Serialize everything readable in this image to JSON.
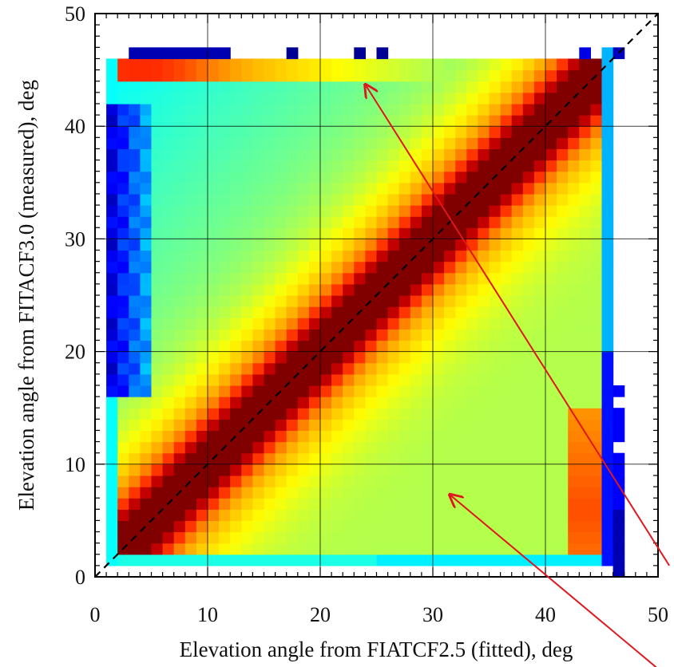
{
  "chart_data": {
    "type": "heatmap",
    "title": "",
    "xlabel": "Elevation angle from FIATCF2.5 (fitted), deg",
    "ylabel": "Elevation angle from FITACF3.0 (measured), deg",
    "xlim": [
      0,
      50
    ],
    "ylim": [
      0,
      50
    ],
    "x_ticks": [
      0,
      10,
      20,
      30,
      40,
      50
    ],
    "y_ticks": [
      0,
      10,
      20,
      30,
      40,
      50
    ],
    "grid": true,
    "bin_size_deg": 1,
    "populated_range_deg": [
      1,
      46
    ],
    "colormap": "jet (blue = low, red = high density)",
    "reference_line": {
      "type": "dashed",
      "equation": "y = x",
      "color": "#000000"
    },
    "features": [
      {
        "x": [
          1,
          46
        ],
        "y": [
          1,
          46
        ],
        "level": "high"
      },
      {
        "x": [
          2,
          12
        ],
        "y": [
          44,
          46
        ],
        "level": "high"
      },
      {
        "x": [
          42,
          45
        ],
        "y": [
          1,
          14
        ],
        "level": "high"
      },
      {
        "x": [
          1,
          5
        ],
        "y": [
          18,
          41
        ],
        "level": "low"
      },
      {
        "x": [
          45,
          46
        ],
        "y": [
          1,
          42
        ],
        "level": "low"
      }
    ],
    "annotations": [
      {
        "type": "arrow",
        "color": "#e0171d",
        "from": [
          51,
          1
        ],
        "to": [
          24,
          43.7
        ]
      },
      {
        "type": "arrow",
        "color": "#e0171d",
        "from": [
          51,
          -9
        ],
        "to": [
          31.5,
          7.3
        ]
      }
    ]
  },
  "colors": {
    "arrow": "#e0171d",
    "grid": "#000000",
    "background": "#ffffff"
  }
}
